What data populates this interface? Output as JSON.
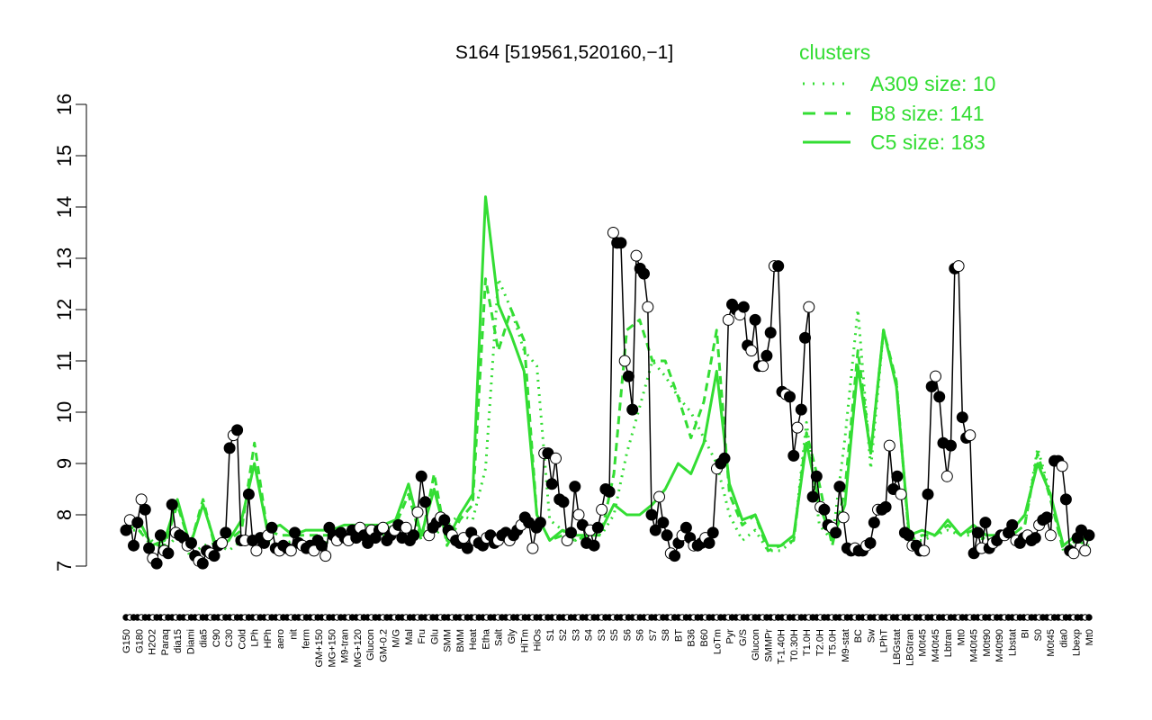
{
  "chart_data": {
    "type": "line",
    "title": "S164 [519561,520160,−1]",
    "xlabel": "",
    "ylabel": "",
    "ylim": [
      7,
      16
    ],
    "yticks": [
      7,
      8,
      9,
      10,
      11,
      12,
      13,
      14,
      15,
      16
    ],
    "colors": {
      "main": "#000000",
      "cluster": "#33dd33",
      "open_point": "#ffffff"
    },
    "x_labels": [
      "G150",
      "G180",
      "H2O2",
      "Paraq",
      "dia15",
      "Diami",
      "dia5",
      "C90",
      "C30",
      "Cold",
      "LPh",
      "HPh",
      "aero",
      "nit",
      "ferm",
      "GM+150",
      "MG+150",
      "M9-tran",
      "MG+120",
      "Glucon",
      "GM-0.2",
      "M/G",
      "Mal",
      "Fru",
      "Glu",
      "SMM",
      "BMM",
      "Heat",
      "Etha",
      "Salt",
      "Gly",
      "HiTm",
      "HiOs",
      "S1",
      "S2",
      "S3",
      "S4",
      "S3",
      "S5",
      "S6",
      "S6",
      "S7",
      "S8",
      "BT",
      "B36",
      "B60",
      "LoTm",
      "Pyr",
      "G/S",
      "Glucon",
      "SMMPr",
      "T-1.40H",
      "T0.30H",
      "T1.0H",
      "T2.0H",
      "T5.0H",
      "M9-stat",
      "BC",
      "Sw",
      "LPhT",
      "LBGstat",
      "LBGtran",
      "M0t45",
      "M40t45",
      "Lbtran",
      "Mt0",
      "M40t45",
      "M0t90",
      "M40t90",
      "Lbstat",
      "BI",
      "S0",
      "M0t45",
      "dia0",
      "Lbexp",
      "Mt0"
    ],
    "legend": {
      "title": "clusters",
      "entries": [
        "A309 size: 10",
        "B8 size: 141",
        "C5 size: 183"
      ]
    },
    "series": [
      {
        "kind": "points",
        "values": [
          7.7,
          7.9,
          7.4,
          7.85,
          8.3,
          8.1,
          7.35,
          7.15,
          7.05,
          7.6,
          7.3,
          7.25,
          8.2,
          7.65,
          7.6,
          7.55,
          7.4,
          7.45,
          7.2,
          7.1,
          7.05,
          7.3,
          7.25,
          7.2,
          7.4,
          7.45,
          7.65,
          9.3,
          9.55,
          9.65,
          7.5,
          7.5,
          8.4,
          7.5,
          7.3,
          7.55,
          7.45,
          7.6,
          7.75,
          7.35,
          7.3,
          7.4,
          7.35,
          7.3,
          7.65,
          7.45,
          7.4,
          7.35,
          7.4,
          7.3,
          7.5,
          7.4,
          7.2,
          7.75,
          7.6,
          7.5,
          7.65,
          7.55,
          7.5,
          7.7,
          7.55,
          7.75,
          7.6,
          7.45,
          7.7,
          7.55,
          7.7,
          7.75,
          7.5,
          7.6,
          7.7,
          7.8,
          7.55,
          7.75,
          7.5,
          7.6,
          8.05,
          8.75,
          8.25,
          7.6,
          7.75,
          7.85,
          7.95,
          7.9,
          7.7,
          7.6,
          7.5,
          7.45,
          7.55,
          7.35,
          7.65,
          7.5,
          7.45,
          7.4,
          7.55,
          7.6,
          7.45,
          7.5,
          7.6,
          7.65,
          7.5,
          7.6,
          7.7,
          7.8,
          7.95,
          7.85,
          7.35,
          7.75,
          7.85,
          9.2,
          9.2,
          8.6,
          9.1,
          8.3,
          8.25,
          7.5,
          7.65,
          8.55,
          8.0,
          7.8,
          7.45,
          7.7,
          7.4,
          7.75,
          8.1,
          8.5,
          8.45,
          13.5,
          13.3,
          13.3,
          11.0,
          10.7,
          10.05,
          13.05,
          12.8,
          12.7,
          12.05,
          8.0,
          7.7,
          8.35,
          7.85,
          7.6,
          7.25,
          7.2,
          7.45,
          7.6,
          7.75,
          7.55,
          7.4,
          7.4,
          7.45,
          7.55,
          7.45,
          7.65,
          8.9,
          9.0,
          9.1,
          11.8,
          12.1,
          12.0,
          11.9,
          12.05,
          11.3,
          11.2,
          11.8,
          10.9,
          10.9,
          11.1,
          11.55,
          12.85,
          12.85,
          10.4,
          10.35,
          10.3,
          9.15,
          9.7,
          10.05,
          11.45,
          12.05,
          8.35,
          8.75,
          8.15,
          8.1,
          7.8,
          7.75,
          7.65,
          8.55,
          7.95,
          7.35,
          7.3,
          7.35,
          7.3,
          7.3,
          7.4,
          7.45,
          7.85,
          8.1,
          8.1,
          8.15,
          9.35,
          8.5,
          8.75,
          8.4,
          7.65,
          7.6,
          7.4,
          7.4,
          7.3,
          7.3,
          8.4,
          10.5,
          10.7,
          10.3,
          9.4,
          8.75,
          9.35,
          12.8,
          12.85,
          9.9,
          9.5,
          9.55,
          7.25,
          7.65,
          7.35,
          7.85,
          7.35,
          7.45,
          7.5,
          7.6,
          7.6,
          7.65,
          7.8,
          7.5,
          7.45,
          7.55,
          7.6,
          7.5,
          7.55,
          7.8,
          7.9,
          7.95,
          7.6,
          9.05,
          9.05,
          8.95,
          8.3,
          7.3,
          7.25,
          7.55,
          7.7,
          7.3,
          7.6
        ]
      },
      {
        "name": "A309 size: 10",
        "kind": "dotted",
        "values": [
          7.7,
          7.7,
          7.5,
          7.3,
          7.6,
          7.2,
          7.4,
          7.45,
          7.3,
          7.5,
          7.6,
          7.5,
          7.4,
          7.5,
          7.3,
          7.4,
          7.5,
          7.5,
          7.6,
          7.6,
          7.6,
          7.6,
          7.7,
          7.7,
          7.6,
          7.8,
          8.0,
          7.9,
          8.9,
          12.6,
          12.0,
          11.2,
          10.9,
          7.9,
          7.7,
          7.5,
          7.7,
          7.6,
          8.0,
          9.2,
          10.1,
          11.0,
          10.7,
          10.3,
          10.0,
          9.5,
          9.0,
          8.0,
          7.5,
          7.7,
          7.3,
          7.3,
          7.5,
          9.8,
          7.8,
          7.5,
          9.5,
          12.0,
          8.9,
          11.6,
          10.6,
          7.5,
          7.5,
          7.6,
          7.7,
          7.6,
          7.6,
          7.5,
          7.6,
          7.6,
          7.8,
          9.3,
          8.4,
          7.3,
          7.5,
          7.4
        ]
      },
      {
        "name": "B8 size: 141",
        "kind": "dashed",
        "values": [
          7.8,
          7.7,
          7.4,
          7.4,
          8.2,
          7.4,
          8.3,
          7.3,
          7.5,
          7.7,
          9.4,
          7.7,
          7.6,
          7.6,
          7.6,
          7.6,
          7.6,
          7.7,
          7.6,
          7.7,
          7.7,
          7.8,
          8.4,
          7.5,
          8.8,
          7.4,
          7.9,
          8.2,
          12.6,
          11.2,
          12.0,
          11.4,
          8.0,
          7.5,
          7.6,
          7.5,
          7.6,
          7.6,
          8.8,
          11.6,
          11.8,
          11.0,
          11.0,
          10.3,
          9.5,
          10.2,
          11.6,
          8.4,
          7.8,
          8.0,
          7.3,
          7.4,
          7.5,
          9.6,
          8.6,
          7.4,
          8.5,
          11.2,
          9.2,
          11.6,
          10.6,
          7.5,
          7.6,
          7.6,
          7.8,
          7.6,
          7.7,
          7.5,
          7.5,
          7.6,
          7.8,
          9.2,
          8.3,
          7.3,
          7.5,
          7.4
        ]
      },
      {
        "name": "C5 size: 183",
        "kind": "solid",
        "values": [
          7.9,
          7.9,
          7.4,
          7.5,
          8.3,
          7.4,
          8.2,
          7.4,
          7.5,
          7.9,
          9.0,
          7.7,
          7.8,
          7.6,
          7.7,
          7.7,
          7.7,
          7.8,
          7.8,
          7.8,
          7.8,
          7.9,
          8.6,
          7.6,
          8.5,
          7.5,
          8.0,
          8.4,
          14.2,
          12.1,
          11.5,
          10.8,
          8.0,
          7.5,
          7.7,
          7.6,
          7.6,
          7.7,
          8.2,
          8.0,
          8.0,
          8.2,
          8.5,
          9.0,
          8.8,
          9.4,
          10.8,
          8.6,
          7.9,
          8.0,
          7.4,
          7.4,
          7.6,
          9.4,
          8.2,
          7.5,
          8.2,
          10.9,
          9.2,
          11.6,
          10.5,
          7.6,
          7.7,
          7.6,
          7.9,
          7.6,
          7.8,
          7.6,
          7.6,
          7.7,
          8.0,
          9.0,
          8.4,
          7.4,
          7.6,
          7.5
        ]
      }
    ]
  }
}
